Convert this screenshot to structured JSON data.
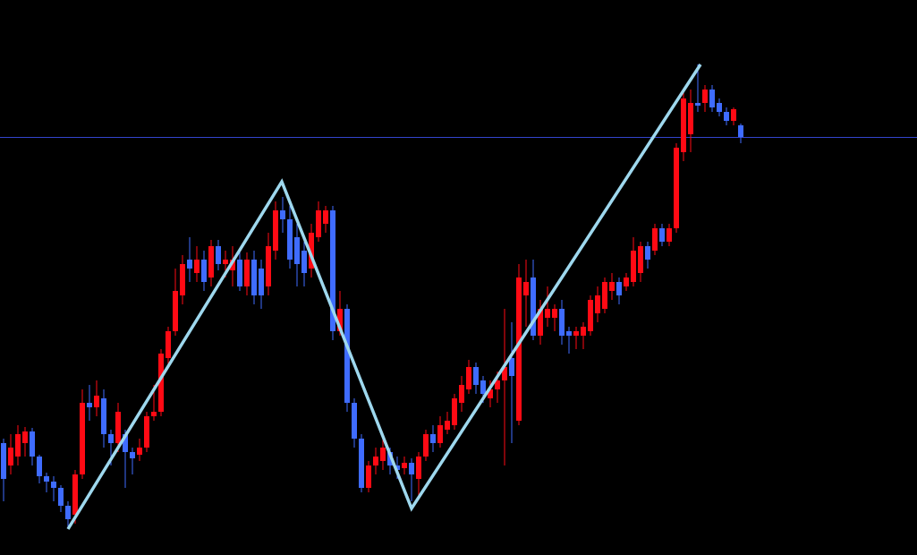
{
  "chart_data": {
    "type": "candlestick",
    "ylim": [
      0,
      620
    ],
    "up_color": "#ff0a14",
    "down_color": "#3f6cff",
    "open": [
      125,
      100,
      110,
      125,
      138,
      110,
      88,
      82,
      75,
      55,
      45,
      90,
      170,
      165,
      175,
      135,
      125,
      135,
      115,
      112,
      120,
      155,
      160,
      220,
      250,
      290,
      330,
      315,
      330,
      310,
      345,
      325,
      318,
      330,
      300,
      330,
      320,
      300,
      340,
      385,
      375,
      355,
      340,
      320,
      355,
      370,
      385,
      250,
      275,
      170,
      130,
      75,
      100,
      105,
      115,
      100,
      97,
      103,
      85,
      110,
      135,
      125,
      140,
      145,
      170,
      185,
      210,
      195,
      175,
      185,
      195,
      220,
      150,
      290,
      310,
      245,
      265,
      265,
      275,
      250,
      245,
      245,
      250,
      270,
      275,
      295,
      305,
      300,
      305,
      315,
      345,
      340,
      365,
      350,
      365,
      450,
      470,
      505,
      505,
      520,
      505,
      495,
      485,
      480
    ],
    "high": [
      130,
      135,
      145,
      143,
      142,
      112,
      92,
      88,
      78,
      60,
      95,
      185,
      190,
      195,
      185,
      140,
      170,
      140,
      120,
      130,
      160,
      190,
      230,
      255,
      320,
      335,
      355,
      345,
      340,
      352,
      352,
      340,
      345,
      340,
      338,
      340,
      330,
      360,
      395,
      400,
      390,
      370,
      350,
      370,
      395,
      390,
      390,
      295,
      280,
      175,
      135,
      105,
      120,
      130,
      120,
      110,
      110,
      108,
      115,
      140,
      145,
      155,
      160,
      180,
      200,
      218,
      215,
      200,
      195,
      205,
      275,
      260,
      325,
      330,
      330,
      285,
      300,
      280,
      285,
      255,
      255,
      260,
      290,
      300,
      310,
      315,
      310,
      315,
      355,
      350,
      350,
      370,
      370,
      370,
      460,
      520,
      520,
      548,
      525,
      525,
      510,
      500,
      500,
      482
    ],
    "low": [
      60,
      90,
      100,
      110,
      100,
      80,
      70,
      60,
      48,
      30,
      35,
      85,
      150,
      155,
      120,
      100,
      115,
      75,
      90,
      105,
      115,
      150,
      155,
      210,
      245,
      280,
      305,
      305,
      295,
      300,
      318,
      310,
      300,
      295,
      290,
      280,
      275,
      290,
      330,
      360,
      320,
      300,
      300,
      310,
      350,
      360,
      240,
      245,
      160,
      120,
      70,
      70,
      90,
      95,
      90,
      85,
      90,
      60,
      65,
      105,
      115,
      120,
      135,
      140,
      160,
      180,
      180,
      170,
      165,
      170,
      100,
      125,
      145,
      255,
      240,
      235,
      255,
      250,
      235,
      225,
      230,
      230,
      245,
      260,
      270,
      285,
      280,
      295,
      300,
      305,
      320,
      335,
      345,
      345,
      360,
      440,
      450,
      495,
      495,
      495,
      490,
      480,
      480,
      460
    ],
    "close": [
      85,
      120,
      135,
      138,
      110,
      88,
      82,
      75,
      55,
      40,
      90,
      170,
      165,
      178,
      135,
      125,
      160,
      115,
      108,
      120,
      155,
      160,
      225,
      250,
      295,
      325,
      320,
      330,
      305,
      345,
      325,
      330,
      330,
      300,
      330,
      290,
      290,
      345,
      385,
      375,
      330,
      325,
      315,
      360,
      385,
      385,
      250,
      275,
      170,
      130,
      75,
      100,
      110,
      120,
      100,
      95,
      103,
      90,
      110,
      135,
      125,
      145,
      150,
      175,
      190,
      210,
      190,
      180,
      185,
      195,
      210,
      200,
      310,
      305,
      245,
      275,
      275,
      275,
      245,
      245,
      250,
      255,
      285,
      290,
      305,
      305,
      290,
      310,
      340,
      345,
      330,
      365,
      350,
      365,
      455,
      510,
      505,
      502,
      520,
      500,
      495,
      485,
      498,
      467
    ]
  }
}
